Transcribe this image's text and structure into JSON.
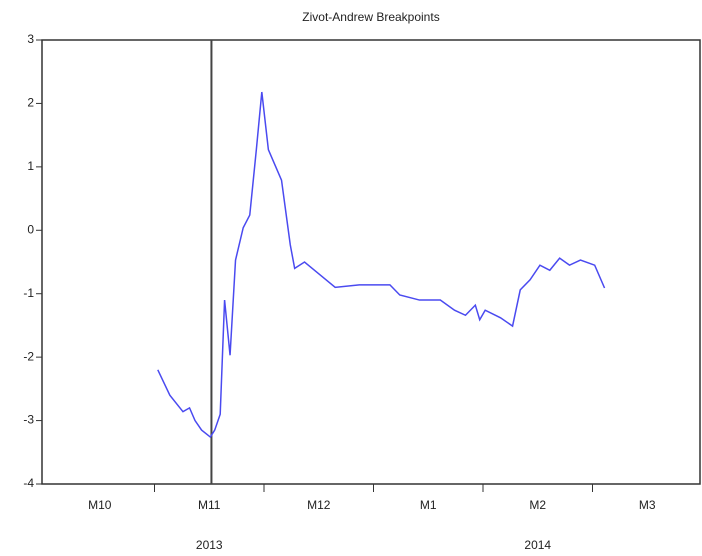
{
  "chart_data": {
    "type": "line",
    "title": "Zivot-Andrew Breakpoints",
    "x": [
      1.03,
      1.14,
      1.26,
      1.32,
      1.37,
      1.43,
      1.51,
      1.55,
      1.6,
      1.64,
      1.69,
      1.74,
      1.81,
      1.87,
      1.93,
      1.98,
      2.04,
      2.1,
      2.16,
      2.24,
      2.28,
      2.37,
      2.51,
      2.65,
      2.87,
      3.15,
      3.24,
      3.42,
      3.61,
      3.74,
      3.84,
      3.93,
      3.97,
      4.02,
      4.16,
      4.27,
      4.34,
      4.43,
      4.52,
      4.61,
      4.7,
      4.79,
      4.89,
      5.02,
      5.11
    ],
    "series": [
      {
        "color": "#4a4af0",
        "values": [
          -2.2,
          -2.6,
          -2.86,
          -2.8,
          -3.0,
          -3.15,
          -3.26,
          -3.15,
          -2.9,
          -1.1,
          -1.97,
          -0.47,
          0.04,
          0.24,
          1.27,
          2.18,
          1.27,
          1.03,
          0.79,
          -0.23,
          -0.6,
          -0.5,
          -0.7,
          -0.9,
          -0.86,
          -0.86,
          -1.02,
          -1.1,
          -1.1,
          -1.26,
          -1.34,
          -1.18,
          -1.41,
          -1.26,
          -1.38,
          -1.51,
          -0.94,
          -0.78,
          -0.55,
          -0.63,
          -0.44,
          -0.55,
          -0.47,
          -0.55,
          -0.91
        ]
      }
    ],
    "xlim": [
      0,
      6
    ],
    "xticks": [
      {
        "value": 0.5,
        "label": "M10"
      },
      {
        "value": 1.5,
        "label": "M11"
      },
      {
        "value": 2.5,
        "label": "M12"
      },
      {
        "value": 3.5,
        "label": "M1"
      },
      {
        "value": 4.5,
        "label": "M2"
      },
      {
        "value": 5.5,
        "label": "M3"
      }
    ],
    "xminor": [
      1,
      2,
      3,
      4,
      5
    ],
    "year_labels": [
      {
        "value": 1.5,
        "label": "2013"
      },
      {
        "value": 4.5,
        "label": "2014"
      }
    ],
    "breakpoint": 1.52,
    "ylim": [
      -4,
      3
    ],
    "yticks": [
      -4,
      -3,
      -2,
      -1,
      0,
      1,
      2,
      3
    ]
  }
}
